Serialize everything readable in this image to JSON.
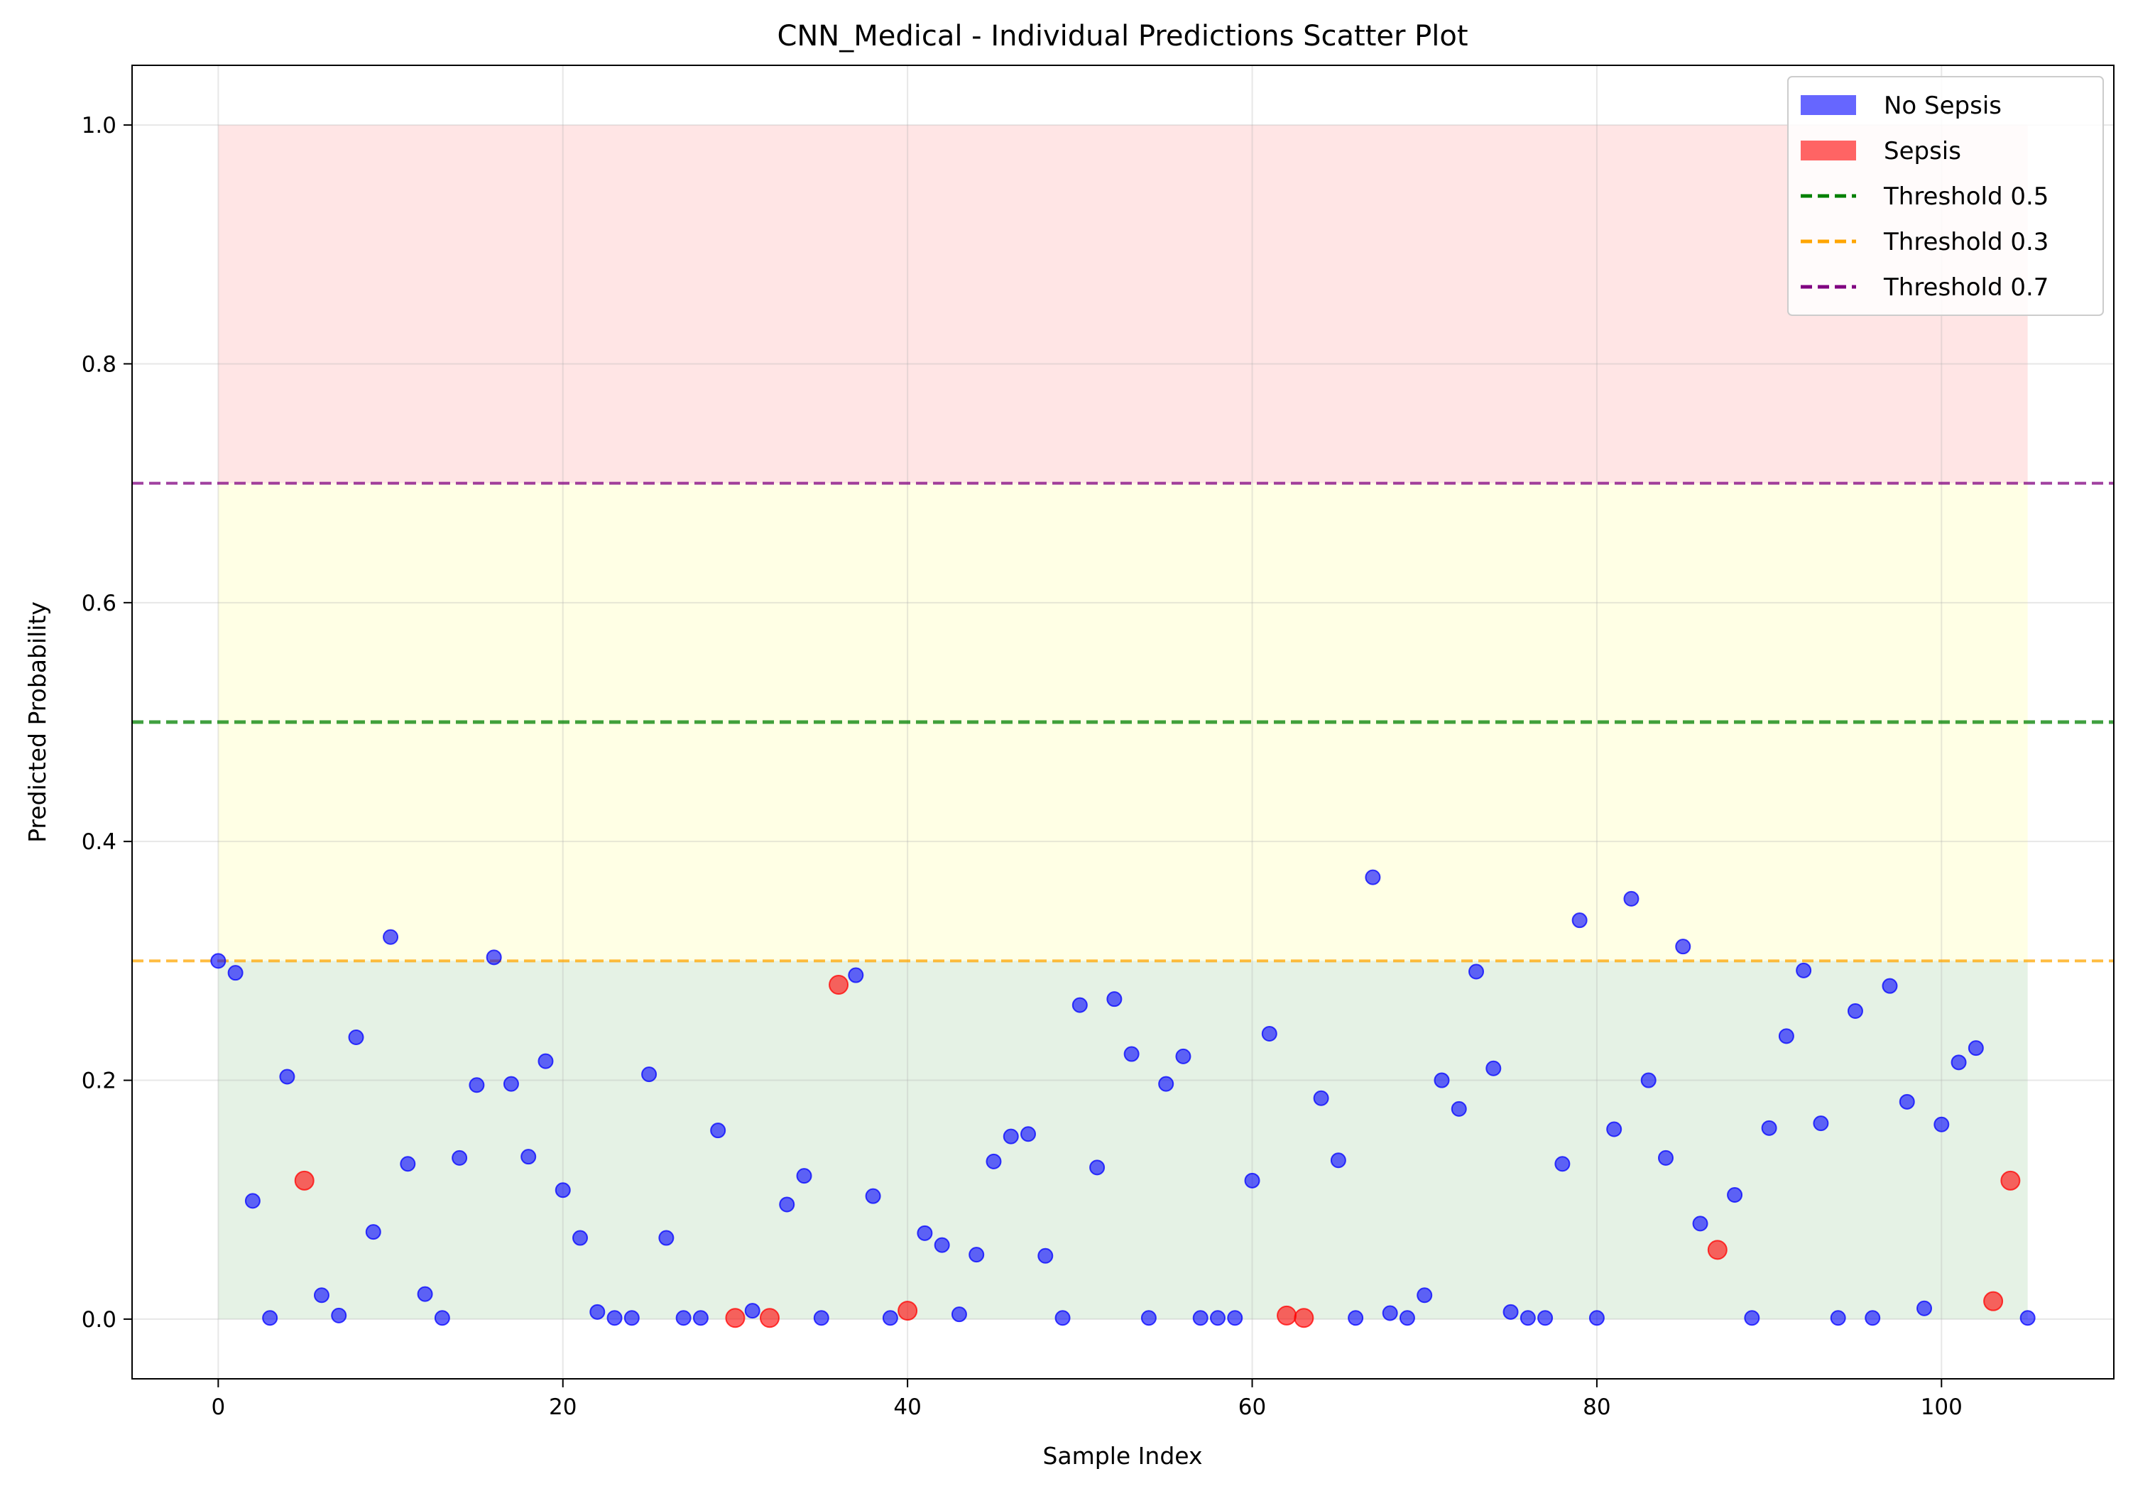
{
  "chart_data": {
    "type": "scatter",
    "title": "CNN_Medical - Individual Predictions Scatter Plot",
    "xlabel": "Sample Index",
    "ylabel": "Predicted Probability",
    "xlim": [
      -5,
      110
    ],
    "ylim": [
      -0.05,
      1.05
    ],
    "xticks": [
      0,
      20,
      40,
      60,
      80,
      100
    ],
    "yticks": [
      0.0,
      0.2,
      0.4,
      0.6,
      0.8,
      1.0
    ],
    "xtick_labels": [
      "0",
      "20",
      "40",
      "60",
      "80",
      "100"
    ],
    "ytick_labels": [
      "0.0",
      "0.2",
      "0.4",
      "0.6",
      "0.8",
      "1.0"
    ],
    "grid": true,
    "legend_position": "top-right",
    "zones": [
      {
        "y0": 0.0,
        "y1": 0.3,
        "x0": 0,
        "x1": 105,
        "color": "#008000",
        "opacity": 0.1
      },
      {
        "y0": 0.3,
        "y1": 0.7,
        "x0": 0,
        "x1": 105,
        "color": "#ffff00",
        "opacity": 0.1
      },
      {
        "y0": 0.7,
        "y1": 1.0,
        "x0": 0,
        "x1": 105,
        "color": "#ff0000",
        "opacity": 0.1
      }
    ],
    "thresholds": [
      {
        "label": "Threshold 0.5",
        "value": 0.5,
        "color": "#008000",
        "width": 5
      },
      {
        "label": "Threshold 0.3",
        "value": 0.3,
        "color": "#ffa500",
        "width": 4
      },
      {
        "label": "Threshold 0.7",
        "value": 0.7,
        "color": "#800080",
        "width": 4
      }
    ],
    "series": [
      {
        "name": "No Sepsis",
        "color": "#0000ff",
        "x": [
          0,
          1,
          2,
          3,
          4,
          6,
          7,
          8,
          9,
          10,
          11,
          12,
          13,
          14,
          15,
          16,
          17,
          18,
          19,
          20,
          21,
          22,
          23,
          24,
          25,
          26,
          27,
          28,
          29,
          31,
          33,
          34,
          35,
          37,
          38,
          39,
          41,
          42,
          43,
          44,
          45,
          46,
          47,
          48,
          49,
          50,
          51,
          52,
          53,
          54,
          55,
          56,
          57,
          58,
          59,
          60,
          61,
          64,
          65,
          66,
          67,
          68,
          69,
          70,
          71,
          72,
          73,
          74,
          75,
          76,
          77,
          78,
          79,
          80,
          81,
          82,
          83,
          84,
          85,
          86,
          88,
          89,
          90,
          91,
          92,
          93,
          94,
          95,
          96,
          97,
          98,
          99,
          100,
          101,
          102,
          105
        ],
        "y": [
          0.3,
          0.29,
          0.099,
          0.001,
          0.203,
          0.02,
          0.003,
          0.236,
          0.073,
          0.32,
          0.13,
          0.021,
          0.001,
          0.135,
          0.196,
          0.303,
          0.197,
          0.136,
          0.216,
          0.108,
          0.068,
          0.006,
          0.001,
          0.001,
          0.205,
          0.068,
          0.001,
          0.001,
          0.158,
          0.007,
          0.096,
          0.12,
          0.001,
          0.288,
          0.103,
          0.001,
          0.072,
          0.062,
          0.004,
          0.054,
          0.132,
          0.153,
          0.155,
          0.053,
          0.001,
          0.263,
          0.127,
          0.268,
          0.222,
          0.001,
          0.197,
          0.22,
          0.001,
          0.001,
          0.001,
          0.116,
          0.239,
          0.185,
          0.133,
          0.001,
          0.37,
          0.005,
          0.001,
          0.02,
          0.2,
          0.176,
          0.291,
          0.21,
          0.006,
          0.001,
          0.001,
          0.13,
          0.334,
          0.001,
          0.159,
          0.352,
          0.2,
          0.135,
          0.312,
          0.08,
          0.104,
          0.001,
          0.16,
          0.237,
          0.292,
          0.164,
          0.001,
          0.258,
          0.001,
          0.279,
          0.182,
          0.009,
          0.163,
          0.215,
          0.227,
          0.001
        ]
      },
      {
        "name": "Sepsis",
        "color": "#ff0000",
        "x": [
          5,
          30,
          32,
          36,
          40,
          62,
          63,
          87,
          103,
          104
        ],
        "y": [
          0.116,
          0.001,
          0.001,
          0.28,
          0.007,
          0.003,
          0.001,
          0.058,
          0.015,
          0.116
        ]
      }
    ]
  }
}
